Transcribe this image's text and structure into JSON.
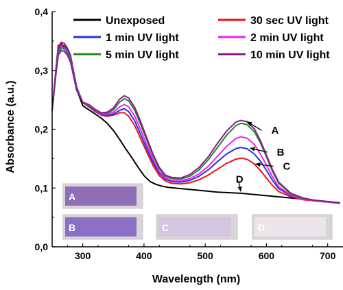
{
  "chart_data": {
    "type": "line",
    "xlabel": "Wavelength (nm)",
    "ylabel": "Absorbance (a.u.)",
    "xlim": [
      250,
      725
    ],
    "ylim": [
      0.0,
      0.4
    ],
    "x_ticks": [
      300,
      400,
      500,
      600,
      700
    ],
    "x_tick_labels": [
      "300",
      "400",
      "500",
      "600",
      "700"
    ],
    "y_ticks": [
      0.0,
      0.1,
      0.2,
      0.3,
      0.4
    ],
    "y_tick_labels": [
      "0,0",
      "0,1",
      "0,2",
      "0,3",
      "0,4"
    ],
    "grid": false,
    "legend_position": "top",
    "series": [
      {
        "name": "Unexposed",
        "color": "#000000",
        "points": [
          [
            250,
            0.232
          ],
          [
            256,
            0.3
          ],
          [
            260,
            0.342
          ],
          [
            265,
            0.346
          ],
          [
            270,
            0.338
          ],
          [
            275,
            0.332
          ],
          [
            280,
            0.322
          ],
          [
            290,
            0.268
          ],
          [
            300,
            0.24
          ],
          [
            310,
            0.233
          ],
          [
            320,
            0.226
          ],
          [
            330,
            0.219
          ],
          [
            340,
            0.21
          ],
          [
            350,
            0.198
          ],
          [
            360,
            0.183
          ],
          [
            370,
            0.167
          ],
          [
            380,
            0.152
          ],
          [
            390,
            0.136
          ],
          [
            400,
            0.121
          ],
          [
            410,
            0.111
          ],
          [
            420,
            0.106
          ],
          [
            430,
            0.103
          ],
          [
            440,
            0.101
          ],
          [
            460,
            0.099
          ],
          [
            480,
            0.097
          ],
          [
            500,
            0.095
          ],
          [
            520,
            0.093
          ],
          [
            540,
            0.092
          ],
          [
            560,
            0.091
          ],
          [
            580,
            0.089
          ],
          [
            600,
            0.087
          ],
          [
            620,
            0.085
          ],
          [
            640,
            0.083
          ],
          [
            660,
            0.081
          ],
          [
            680,
            0.079
          ],
          [
            700,
            0.077
          ],
          [
            720,
            0.075
          ]
        ]
      },
      {
        "name": "30 sec UV light",
        "color": "#ee1111",
        "points": [
          [
            250,
            0.232
          ],
          [
            256,
            0.3
          ],
          [
            260,
            0.34
          ],
          [
            265,
            0.348
          ],
          [
            270,
            0.346
          ],
          [
            275,
            0.338
          ],
          [
            280,
            0.326
          ],
          [
            290,
            0.272
          ],
          [
            300,
            0.245
          ],
          [
            310,
            0.238
          ],
          [
            320,
            0.23
          ],
          [
            330,
            0.224
          ],
          [
            340,
            0.222
          ],
          [
            350,
            0.224
          ],
          [
            360,
            0.228
          ],
          [
            368,
            0.228
          ],
          [
            375,
            0.222
          ],
          [
            385,
            0.206
          ],
          [
            395,
            0.183
          ],
          [
            405,
            0.16
          ],
          [
            415,
            0.138
          ],
          [
            425,
            0.121
          ],
          [
            435,
            0.112
          ],
          [
            445,
            0.108
          ],
          [
            460,
            0.107
          ],
          [
            475,
            0.109
          ],
          [
            490,
            0.114
          ],
          [
            505,
            0.122
          ],
          [
            520,
            0.132
          ],
          [
            535,
            0.142
          ],
          [
            550,
            0.149
          ],
          [
            560,
            0.151
          ],
          [
            570,
            0.148
          ],
          [
            580,
            0.141
          ],
          [
            590,
            0.13
          ],
          [
            600,
            0.117
          ],
          [
            610,
            0.104
          ],
          [
            620,
            0.094
          ],
          [
            640,
            0.085
          ],
          [
            660,
            0.08
          ],
          [
            680,
            0.078
          ],
          [
            700,
            0.076
          ],
          [
            720,
            0.074
          ]
        ]
      },
      {
        "name": "1 min UV light",
        "color": "#2233dd",
        "points": [
          [
            250,
            0.232
          ],
          [
            256,
            0.298
          ],
          [
            260,
            0.336
          ],
          [
            265,
            0.344
          ],
          [
            270,
            0.342
          ],
          [
            275,
            0.336
          ],
          [
            280,
            0.324
          ],
          [
            290,
            0.272
          ],
          [
            300,
            0.246
          ],
          [
            310,
            0.239
          ],
          [
            320,
            0.231
          ],
          [
            330,
            0.225
          ],
          [
            340,
            0.223
          ],
          [
            350,
            0.226
          ],
          [
            360,
            0.232
          ],
          [
            368,
            0.235
          ],
          [
            375,
            0.23
          ],
          [
            385,
            0.214
          ],
          [
            395,
            0.19
          ],
          [
            405,
            0.166
          ],
          [
            415,
            0.143
          ],
          [
            425,
            0.125
          ],
          [
            435,
            0.115
          ],
          [
            445,
            0.111
          ],
          [
            460,
            0.11
          ],
          [
            475,
            0.113
          ],
          [
            490,
            0.12
          ],
          [
            505,
            0.131
          ],
          [
            520,
            0.145
          ],
          [
            535,
            0.158
          ],
          [
            550,
            0.167
          ],
          [
            558,
            0.169
          ],
          [
            568,
            0.167
          ],
          [
            580,
            0.158
          ],
          [
            590,
            0.146
          ],
          [
            600,
            0.13
          ],
          [
            610,
            0.113
          ],
          [
            620,
            0.099
          ],
          [
            640,
            0.087
          ],
          [
            660,
            0.081
          ],
          [
            680,
            0.078
          ],
          [
            700,
            0.076
          ],
          [
            720,
            0.074
          ]
        ]
      },
      {
        "name": "2 min UV light",
        "color": "#ee22ee",
        "points": [
          [
            250,
            0.232
          ],
          [
            256,
            0.296
          ],
          [
            260,
            0.332
          ],
          [
            265,
            0.34
          ],
          [
            270,
            0.338
          ],
          [
            275,
            0.332
          ],
          [
            280,
            0.32
          ],
          [
            290,
            0.27
          ],
          [
            300,
            0.246
          ],
          [
            310,
            0.24
          ],
          [
            320,
            0.232
          ],
          [
            330,
            0.226
          ],
          [
            340,
            0.225
          ],
          [
            350,
            0.229
          ],
          [
            360,
            0.238
          ],
          [
            368,
            0.242
          ],
          [
            375,
            0.238
          ],
          [
            385,
            0.222
          ],
          [
            395,
            0.198
          ],
          [
            405,
            0.172
          ],
          [
            415,
            0.148
          ],
          [
            425,
            0.128
          ],
          [
            435,
            0.117
          ],
          [
            445,
            0.113
          ],
          [
            460,
            0.112
          ],
          [
            475,
            0.116
          ],
          [
            490,
            0.124
          ],
          [
            505,
            0.137
          ],
          [
            520,
            0.154
          ],
          [
            535,
            0.171
          ],
          [
            550,
            0.184
          ],
          [
            558,
            0.187
          ],
          [
            568,
            0.185
          ],
          [
            580,
            0.174
          ],
          [
            590,
            0.158
          ],
          [
            600,
            0.139
          ],
          [
            610,
            0.119
          ],
          [
            620,
            0.102
          ],
          [
            640,
            0.088
          ],
          [
            660,
            0.081
          ],
          [
            680,
            0.078
          ],
          [
            700,
            0.076
          ],
          [
            720,
            0.074
          ]
        ]
      },
      {
        "name": "5 min UV light",
        "color": "#1e8a2e",
        "points": [
          [
            250,
            0.232
          ],
          [
            256,
            0.294
          ],
          [
            260,
            0.33
          ],
          [
            265,
            0.338
          ],
          [
            270,
            0.336
          ],
          [
            275,
            0.33
          ],
          [
            280,
            0.318
          ],
          [
            290,
            0.268
          ],
          [
            300,
            0.246
          ],
          [
            310,
            0.241
          ],
          [
            320,
            0.233
          ],
          [
            330,
            0.227
          ],
          [
            340,
            0.227
          ],
          [
            350,
            0.233
          ],
          [
            360,
            0.246
          ],
          [
            368,
            0.252
          ],
          [
            375,
            0.248
          ],
          [
            385,
            0.232
          ],
          [
            395,
            0.207
          ],
          [
            405,
            0.18
          ],
          [
            415,
            0.154
          ],
          [
            425,
            0.133
          ],
          [
            435,
            0.12
          ],
          [
            445,
            0.116
          ],
          [
            460,
            0.115
          ],
          [
            475,
            0.12
          ],
          [
            490,
            0.131
          ],
          [
            505,
            0.148
          ],
          [
            520,
            0.169
          ],
          [
            535,
            0.19
          ],
          [
            550,
            0.206
          ],
          [
            558,
            0.21
          ],
          [
            568,
            0.208
          ],
          [
            580,
            0.196
          ],
          [
            590,
            0.177
          ],
          [
            600,
            0.153
          ],
          [
            610,
            0.128
          ],
          [
            620,
            0.108
          ],
          [
            640,
            0.09
          ],
          [
            660,
            0.082
          ],
          [
            680,
            0.079
          ],
          [
            700,
            0.077
          ],
          [
            720,
            0.074
          ]
        ]
      },
      {
        "name": "10 min UV light",
        "color": "#8b1a8b",
        "points": [
          [
            250,
            0.232
          ],
          [
            256,
            0.292
          ],
          [
            260,
            0.326
          ],
          [
            265,
            0.334
          ],
          [
            270,
            0.332
          ],
          [
            275,
            0.326
          ],
          [
            280,
            0.314
          ],
          [
            290,
            0.266
          ],
          [
            300,
            0.246
          ],
          [
            310,
            0.242
          ],
          [
            320,
            0.234
          ],
          [
            330,
            0.228
          ],
          [
            340,
            0.229
          ],
          [
            350,
            0.236
          ],
          [
            360,
            0.251
          ],
          [
            368,
            0.257
          ],
          [
            375,
            0.253
          ],
          [
            385,
            0.237
          ],
          [
            395,
            0.212
          ],
          [
            405,
            0.184
          ],
          [
            415,
            0.157
          ],
          [
            425,
            0.135
          ],
          [
            435,
            0.122
          ],
          [
            445,
            0.118
          ],
          [
            460,
            0.117
          ],
          [
            475,
            0.123
          ],
          [
            490,
            0.135
          ],
          [
            505,
            0.153
          ],
          [
            520,
            0.176
          ],
          [
            535,
            0.197
          ],
          [
            550,
            0.212
          ],
          [
            558,
            0.215
          ],
          [
            568,
            0.213
          ],
          [
            580,
            0.201
          ],
          [
            590,
            0.181
          ],
          [
            600,
            0.156
          ],
          [
            610,
            0.131
          ],
          [
            620,
            0.11
          ],
          [
            640,
            0.091
          ],
          [
            660,
            0.083
          ],
          [
            680,
            0.079
          ],
          [
            700,
            0.077
          ],
          [
            720,
            0.074
          ]
        ]
      }
    ],
    "annotations": [
      {
        "text": "A",
        "x": 608,
        "y": 0.198,
        "arrow_to": [
          568,
          0.213
        ]
      },
      {
        "text": "B",
        "x": 617,
        "y": 0.161,
        "arrow_to": [
          573,
          0.168
        ]
      },
      {
        "text": "C",
        "x": 627,
        "y": 0.137,
        "arrow_to": [
          582,
          0.141
        ]
      },
      {
        "text": "D",
        "x": 550,
        "y": 0.115,
        "arrow_to": [
          558,
          0.094
        ]
      }
    ],
    "sample_strips": [
      {
        "label": "A",
        "color": "#8e6fb6"
      },
      {
        "label": "B",
        "color": "#8b6fc4"
      },
      {
        "label": "C",
        "color": "#d3c6e0"
      },
      {
        "label": "D",
        "color": "#ece6ea"
      }
    ]
  }
}
